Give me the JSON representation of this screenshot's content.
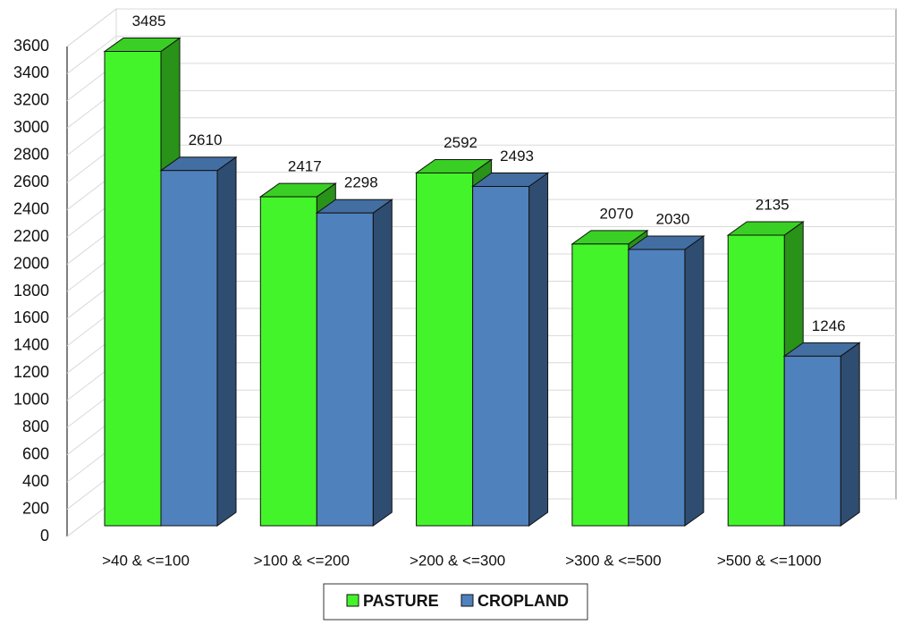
{
  "chart_data": {
    "type": "bar3d",
    "categories": [
      ">40 & <=100",
      ">100 & <=200",
      ">200 & <=300",
      ">300 & <=500",
      ">500 & <=1000"
    ],
    "series": [
      {
        "name": "PASTURE",
        "color": "#44f42a",
        "values": [
          3485,
          2417,
          2592,
          2070,
          2135
        ]
      },
      {
        "name": "CROPLAND",
        "color": "#4f81bd",
        "values": [
          2610,
          2298,
          2493,
          2030,
          1246
        ]
      }
    ],
    "ylim": [
      0,
      3600
    ],
    "yticks": [
      0,
      200,
      400,
      600,
      800,
      1000,
      1200,
      1400,
      1600,
      1800,
      2000,
      2200,
      2400,
      2600,
      2800,
      3000,
      3200,
      3400,
      3600
    ],
    "grid": true,
    "legend": "bottom"
  }
}
